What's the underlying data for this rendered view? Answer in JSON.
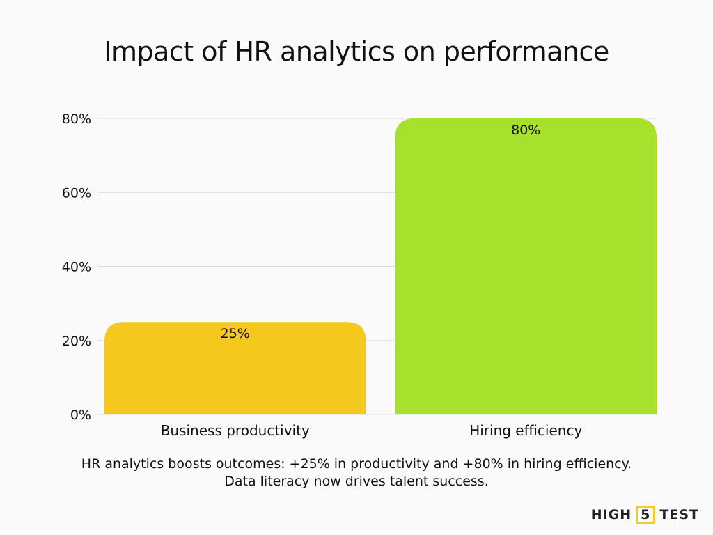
{
  "chart_data": {
    "type": "bar",
    "title": "Impact of HR analytics on performance",
    "categories": [
      "Business productivity",
      "Hiring efficiency"
    ],
    "values": [
      25,
      80
    ],
    "data_labels": [
      "25%",
      "80%"
    ],
    "colors": [
      "#f4c81c",
      "#a8e02e"
    ],
    "ylim": [
      0,
      80
    ],
    "yticks": [
      0,
      20,
      40,
      60,
      80
    ],
    "ytick_labels": [
      "0%",
      "20%",
      "40%",
      "60%",
      "80%"
    ],
    "grid": true,
    "xlabel": "",
    "ylabel": ""
  },
  "caption": {
    "line1": "HR analytics boosts outcomes: +25% in productivity and +80% in hiring efficiency.",
    "line2": "Data literacy now drives talent success."
  },
  "logo": {
    "left": "HIGH",
    "middle": "5",
    "right": "TEST"
  }
}
